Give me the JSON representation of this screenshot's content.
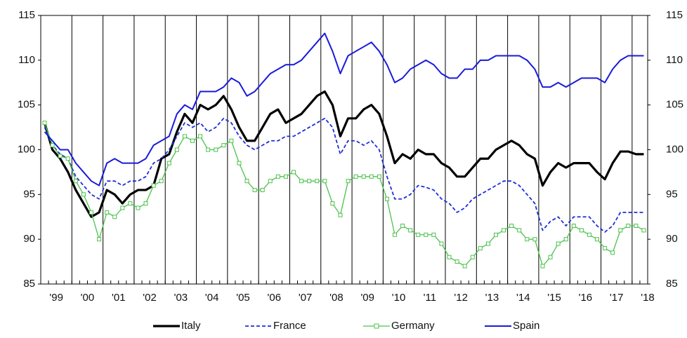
{
  "chart_data": {
    "type": "line",
    "categories": [
      null,
      "'99",
      null,
      null,
      null,
      "'00",
      null,
      null,
      null,
      "'01",
      null,
      null,
      null,
      "'02",
      null,
      null,
      null,
      "'03",
      null,
      null,
      null,
      "'04",
      null,
      null,
      null,
      "'05",
      null,
      null,
      null,
      "'06",
      null,
      null,
      null,
      "'07",
      null,
      null,
      null,
      "'08",
      null,
      null,
      null,
      "'09",
      null,
      null,
      null,
      "'10",
      null,
      null,
      null,
      "'11",
      null,
      null,
      null,
      "'12",
      null,
      null,
      null,
      "'13",
      null,
      null,
      null,
      "'14",
      null,
      null,
      null,
      "'15",
      null,
      null,
      null,
      "'16",
      null,
      null,
      null,
      "'17",
      null,
      null,
      null,
      "'18"
    ],
    "series": [
      {
        "name": "Italy",
        "color": "#000000",
        "style": "solid",
        "width": 3.2,
        "values": [
          103,
          100,
          99,
          97.5,
          95.5,
          94,
          92.5,
          93,
          95.5,
          95,
          94,
          95,
          95.5,
          95.5,
          96,
          99,
          99.5,
          102,
          104,
          103,
          105,
          104.5,
          105,
          106,
          104.5,
          102.5,
          101,
          101,
          102.5,
          104,
          104.5,
          103,
          103.5,
          104,
          105,
          106,
          106.5,
          105,
          101.5,
          103.5,
          103.5,
          104.5,
          105,
          104,
          101.5,
          98.5,
          99.5,
          99,
          100,
          99.5,
          99.5,
          98.5,
          98,
          97,
          97,
          98,
          99,
          99,
          100,
          100.5,
          101,
          100.5,
          99.5,
          99,
          96,
          97.5,
          98.5,
          98,
          98.5,
          98.5,
          98.5,
          97.5,
          96.7,
          98.5,
          99.8,
          99.8,
          99.5,
          99.5
        ]
      },
      {
        "name": "France",
        "color": "#1f2fd6",
        "style": "dashed",
        "width": 1.8,
        "values": [
          102.5,
          100.5,
          99.5,
          99,
          97,
          96,
          95,
          94.5,
          96.5,
          96.5,
          96,
          96.5,
          96.5,
          97,
          98.5,
          99,
          100,
          101.5,
          103,
          102.5,
          103,
          102,
          102.5,
          103.5,
          103,
          101.5,
          100.5,
          100,
          100.5,
          101,
          101,
          101.5,
          101.5,
          102,
          102.5,
          103,
          103.5,
          102.5,
          99.5,
          101,
          101,
          100.5,
          101,
          100,
          97,
          94.5,
          94.5,
          95,
          96,
          95.8,
          95.5,
          94.5,
          94,
          93,
          93.5,
          94.5,
          95,
          95.5,
          96,
          96.5,
          96.5,
          96,
          95,
          94,
          91,
          92,
          92.5,
          91.5,
          92.5,
          92.5,
          92.5,
          91.5,
          90.8,
          91.5,
          93,
          93,
          93,
          93
        ]
      },
      {
        "name": "Germany",
        "color": "#4cc24c",
        "style": "markers",
        "width": 1.3,
        "values": [
          103,
          100.5,
          99.3,
          99,
          96.5,
          95,
          93,
          90,
          93,
          92.5,
          93.5,
          94,
          93.5,
          94,
          96,
          96.5,
          98.5,
          100,
          101.5,
          101,
          101.5,
          100,
          100,
          100.5,
          101,
          98.5,
          96.5,
          95.5,
          95.5,
          96.5,
          97,
          97,
          97.5,
          96.5,
          96.5,
          96.5,
          96.5,
          94,
          92.7,
          96.5,
          97,
          97,
          97,
          97,
          94.5,
          90.5,
          91.5,
          91,
          90.5,
          90.5,
          90.5,
          89.5,
          88,
          87.5,
          87,
          88,
          89,
          89.5,
          90.5,
          91,
          91.5,
          91,
          90,
          90,
          87,
          88,
          89.5,
          90,
          91.5,
          91,
          90.5,
          90,
          89,
          88.5,
          91,
          91.5,
          91.5,
          91
        ]
      },
      {
        "name": "Spain",
        "color": "#1a1adb",
        "style": "solid",
        "width": 2,
        "values": [
          102,
          101,
          100,
          100,
          98.5,
          97.5,
          96.5,
          96,
          98.5,
          99,
          98.5,
          98.5,
          98.5,
          99,
          100.5,
          101,
          101.5,
          104,
          105,
          104.5,
          106.5,
          106.5,
          106.5,
          107,
          108,
          107.5,
          106,
          106.5,
          107.5,
          108.5,
          109,
          109.5,
          109.5,
          110,
          111,
          112,
          113,
          111,
          108.5,
          110.5,
          111,
          111.5,
          112,
          111,
          109.5,
          107.5,
          108,
          109,
          109.5,
          110,
          109.5,
          108.5,
          108,
          108,
          109,
          109,
          110,
          110,
          110.5,
          110.5,
          110.5,
          110.5,
          110,
          109,
          107,
          107,
          107.5,
          107,
          107.5,
          108,
          108,
          108,
          107.5,
          109,
          110,
          110.5,
          110.5,
          110.5
        ]
      }
    ],
    "ylim": [
      85,
      115
    ],
    "yticks": [
      85,
      90,
      95,
      100,
      105,
      110,
      115
    ],
    "right_axis": true,
    "legend": "bottom"
  }
}
